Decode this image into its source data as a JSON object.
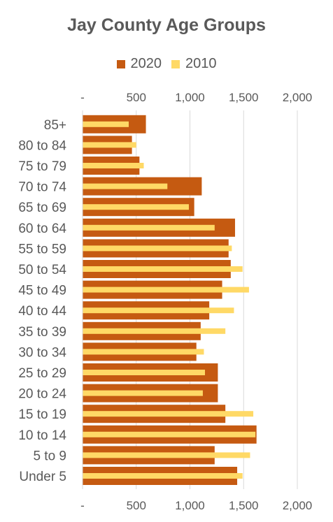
{
  "colors": {
    "series_2020": "#C55A11",
    "series_2010": "#FFD966",
    "grid": "#D9D9D9",
    "text": "#595959"
  },
  "chart_data": {
    "type": "bar",
    "orientation": "horizontal",
    "title": "Jay County Age Groups",
    "legend_position": "top",
    "categories": [
      "85+",
      "80 to 84",
      "75 to 79",
      "70 to 74",
      "65 to 69",
      "60 to 64",
      "55 to 59",
      "50 to 54",
      "45 to 49",
      "40 to 44",
      "35 to 39",
      "30 to 34",
      "25 to 29",
      "20 to 24",
      "15 to 19",
      "10 to 14",
      "5 to 9",
      "Under 5"
    ],
    "series": [
      {
        "name": "2020",
        "values": [
          590,
          460,
          530,
          1110,
          1040,
          1420,
          1360,
          1380,
          1300,
          1180,
          1100,
          1060,
          1260,
          1260,
          1330,
          1620,
          1230,
          1440
        ]
      },
      {
        "name": "2010",
        "values": [
          430,
          500,
          570,
          790,
          990,
          1230,
          1390,
          1490,
          1550,
          1410,
          1330,
          1130,
          1140,
          1120,
          1590,
          1610,
          1560,
          1490
        ]
      }
    ],
    "xlim": [
      0,
      2000
    ],
    "x_ticks": [
      0,
      500,
      1000,
      1500,
      2000
    ],
    "x_tick_labels": [
      "-",
      "500",
      "1,000",
      "1,500",
      "2,000"
    ],
    "grid": true
  }
}
